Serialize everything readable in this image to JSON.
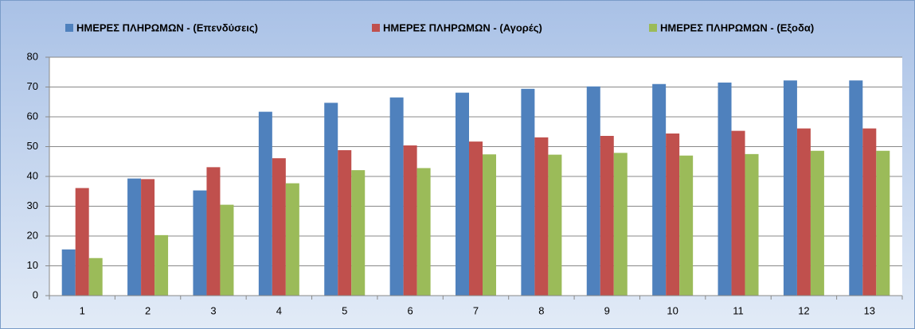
{
  "chart_data": {
    "type": "bar",
    "categories": [
      "1",
      "2",
      "3",
      "4",
      "5",
      "6",
      "7",
      "8",
      "9",
      "10",
      "11",
      "12",
      "13"
    ],
    "series": [
      {
        "name": "ΗΜΕΡΕΣ ΠΛΗΡΩΜΩΝ - (Επενδύσεις)",
        "color": "#4f81bd",
        "values": [
          15.5,
          39.3,
          35.3,
          61.7,
          64.7,
          66.5,
          68.1,
          69.4,
          70.2,
          71.0,
          71.5,
          72.2,
          72.2
        ]
      },
      {
        "name": "ΗΜΕΡΕΣ ΠΛΗΡΩΜΩΝ - (Αγορές)",
        "color": "#c0504d",
        "values": [
          36.1,
          39.1,
          43.1,
          46.1,
          48.8,
          50.4,
          51.7,
          53.1,
          53.6,
          54.4,
          55.3,
          56.1,
          56.1
        ]
      },
      {
        "name": "ΗΜΕΡΕΣ ΠΛΗΡΩΜΩΝ - (Εξοδα)",
        "color": "#9bbb59",
        "values": [
          12.6,
          20.3,
          30.5,
          37.7,
          42.1,
          42.8,
          47.4,
          47.3,
          47.9,
          47.0,
          47.5,
          48.6,
          48.6
        ]
      }
    ],
    "ylim": [
      0,
      80
    ],
    "yticks": [
      0,
      10,
      20,
      30,
      40,
      50,
      60,
      70,
      80
    ],
    "grid": true,
    "legend": "top"
  }
}
